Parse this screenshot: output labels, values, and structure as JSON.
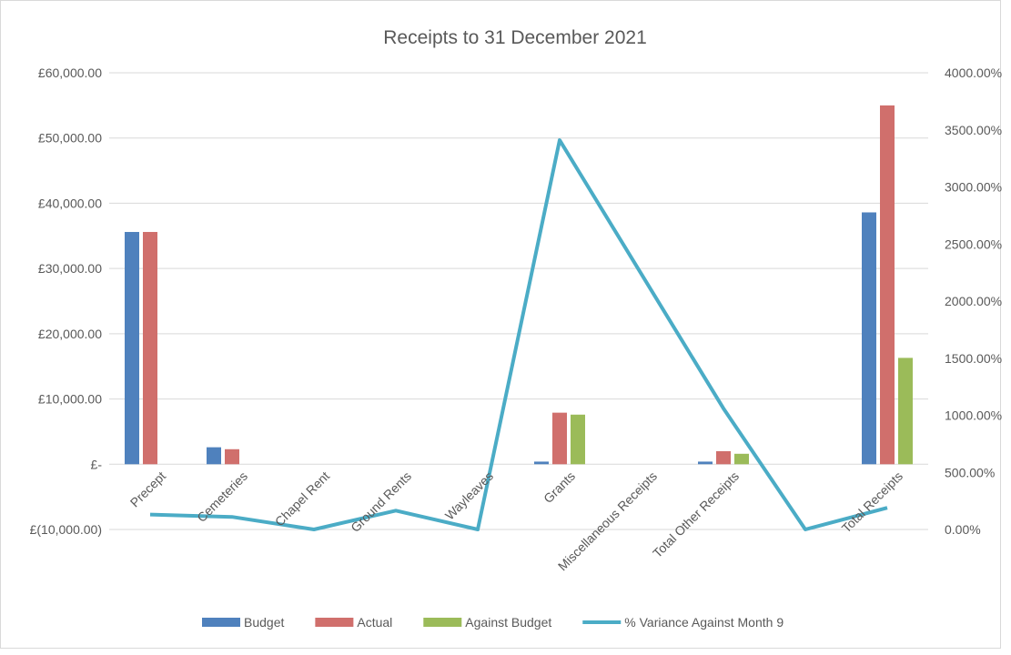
{
  "chart_data": {
    "type": "bar",
    "title": "Receipts to 31 December 2021",
    "categories": [
      "Precept",
      "Cemeteries",
      "Chapel Rent",
      "Ground Rents",
      "Wayleaves",
      "Grants",
      "Miscellaneous Receipts",
      "Total Other Receipts",
      "",
      "Total Receipts"
    ],
    "series": [
      {
        "name": "Budget",
        "type": "bar",
        "axis": "left",
        "color": "#4f81bd",
        "values": [
          35600,
          2600,
          0,
          0,
          0,
          400,
          0,
          400,
          0,
          38600
        ]
      },
      {
        "name": "Actual",
        "type": "bar",
        "axis": "left",
        "color": "#d06f6c",
        "values": [
          35600,
          2300,
          0,
          0,
          0,
          7900,
          0,
          2000,
          0,
          55000
        ]
      },
      {
        "name": "Against Budget",
        "type": "bar",
        "axis": "left",
        "color": "#9bbb59",
        "values": [
          0,
          0,
          0,
          0,
          0,
          7600,
          0,
          1600,
          0,
          16300
        ]
      },
      {
        "name": "% Variance Against Month 9",
        "type": "line",
        "axis": "right",
        "color": "#4bacc6",
        "values": [
          130,
          110,
          0,
          165,
          0,
          3410,
          null,
          1060,
          0,
          190
        ]
      }
    ],
    "y_left": {
      "min": -10000,
      "max": 60000,
      "ticks": [
        {
          "value": 60000,
          "label": "£60,000.00"
        },
        {
          "value": 50000,
          "label": "£50,000.00"
        },
        {
          "value": 40000,
          "label": "£40,000.00"
        },
        {
          "value": 30000,
          "label": "£30,000.00"
        },
        {
          "value": 20000,
          "label": "£20,000.00"
        },
        {
          "value": 10000,
          "label": "£10,000.00"
        },
        {
          "value": 0,
          "label": "£-"
        },
        {
          "value": -10000,
          "label": "£(10,000.00)"
        }
      ]
    },
    "y_right": {
      "min": 0,
      "max": 4000,
      "ticks": [
        {
          "value": 4000,
          "label": "4000.00%"
        },
        {
          "value": 3500,
          "label": "3500.00%"
        },
        {
          "value": 3000,
          "label": "3000.00%"
        },
        {
          "value": 2500,
          "label": "2500.00%"
        },
        {
          "value": 2000,
          "label": "2000.00%"
        },
        {
          "value": 1500,
          "label": "1500.00%"
        },
        {
          "value": 1000,
          "label": "1000.00%"
        },
        {
          "value": 500,
          "label": "500.00%"
        },
        {
          "value": 0,
          "label": "0.00%"
        }
      ]
    },
    "grid": true,
    "legend_position": "bottom"
  }
}
